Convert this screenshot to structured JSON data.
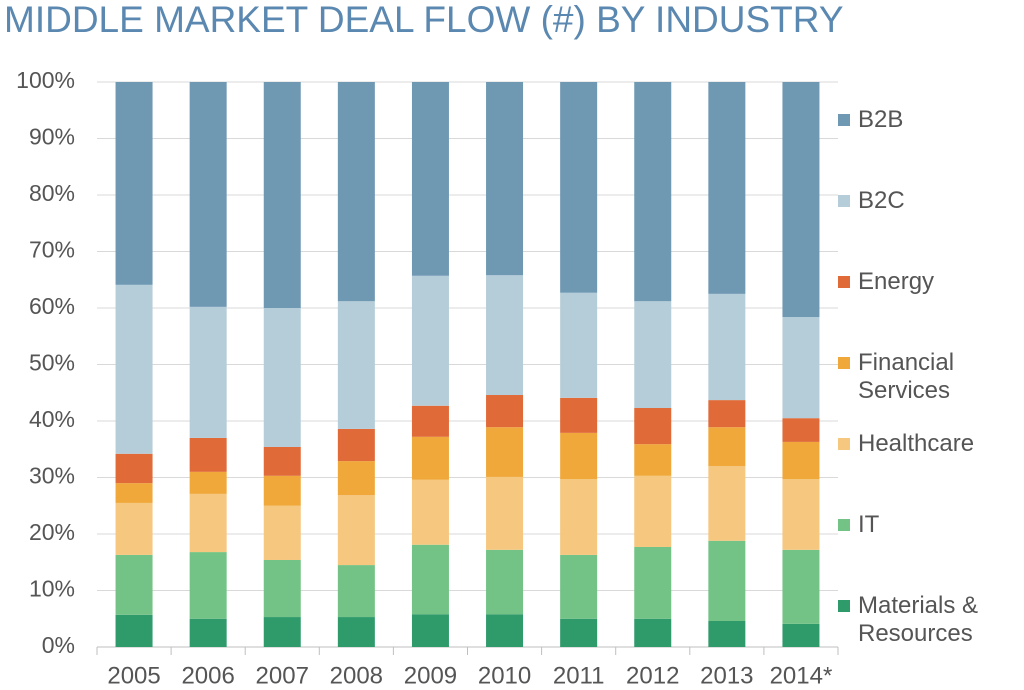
{
  "chart_data": {
    "type": "stacked_bar",
    "title": "MIDDLE MARKET DEAL FLOW (#) BY INDUSTRY",
    "categories": [
      "2005",
      "2006",
      "2007",
      "2008",
      "2009",
      "2010",
      "2011",
      "2012",
      "2013",
      "2014*"
    ],
    "series": [
      {
        "name": "Materials & Resources",
        "color": "#2f9a6a",
        "values": [
          5.7,
          5.0,
          5.3,
          5.3,
          5.8,
          5.8,
          5.0,
          5.0,
          4.6,
          4.1
        ]
      },
      {
        "name": "IT",
        "color": "#72c385",
        "values": [
          10.6,
          11.8,
          10.1,
          9.2,
          12.3,
          11.4,
          11.3,
          12.7,
          14.2,
          13.1
        ]
      },
      {
        "name": "Healthcare",
        "color": "#f5c77f",
        "values": [
          9.2,
          10.3,
          9.6,
          12.4,
          11.5,
          12.9,
          13.4,
          12.6,
          13.2,
          12.5
        ]
      },
      {
        "name": "Financial Services",
        "color": "#f0a83a",
        "values": [
          3.5,
          3.9,
          5.3,
          6.0,
          7.6,
          8.8,
          8.2,
          5.6,
          6.9,
          6.6
        ]
      },
      {
        "name": "Energy",
        "color": "#e06a38",
        "values": [
          5.2,
          6.0,
          5.1,
          5.7,
          5.5,
          5.7,
          6.2,
          6.4,
          4.8,
          4.2
        ]
      },
      {
        "name": "B2C",
        "color": "#b5cdd9",
        "values": [
          29.9,
          23.2,
          24.6,
          22.6,
          23.0,
          21.2,
          18.6,
          18.9,
          18.8,
          17.9
        ]
      },
      {
        "name": "B2B",
        "color": "#6f98b3",
        "values": [
          35.9,
          39.8,
          40.0,
          38.8,
          34.3,
          34.2,
          37.3,
          38.8,
          37.5,
          41.6
        ]
      }
    ],
    "ylim": [
      0,
      100
    ],
    "yticks": [
      {
        "value": 0,
        "label": "0%"
      },
      {
        "value": 10,
        "label": "10%"
      },
      {
        "value": 20,
        "label": "20%"
      },
      {
        "value": 30,
        "label": "30%"
      },
      {
        "value": 40,
        "label": "40%"
      },
      {
        "value": 50,
        "label": "50%"
      },
      {
        "value": 60,
        "label": "60%"
      },
      {
        "value": 70,
        "label": "70%"
      },
      {
        "value": 80,
        "label": "80%"
      },
      {
        "value": 90,
        "label": "90%"
      },
      {
        "value": 100,
        "label": "100%"
      }
    ],
    "grid": true,
    "legend": "right"
  }
}
